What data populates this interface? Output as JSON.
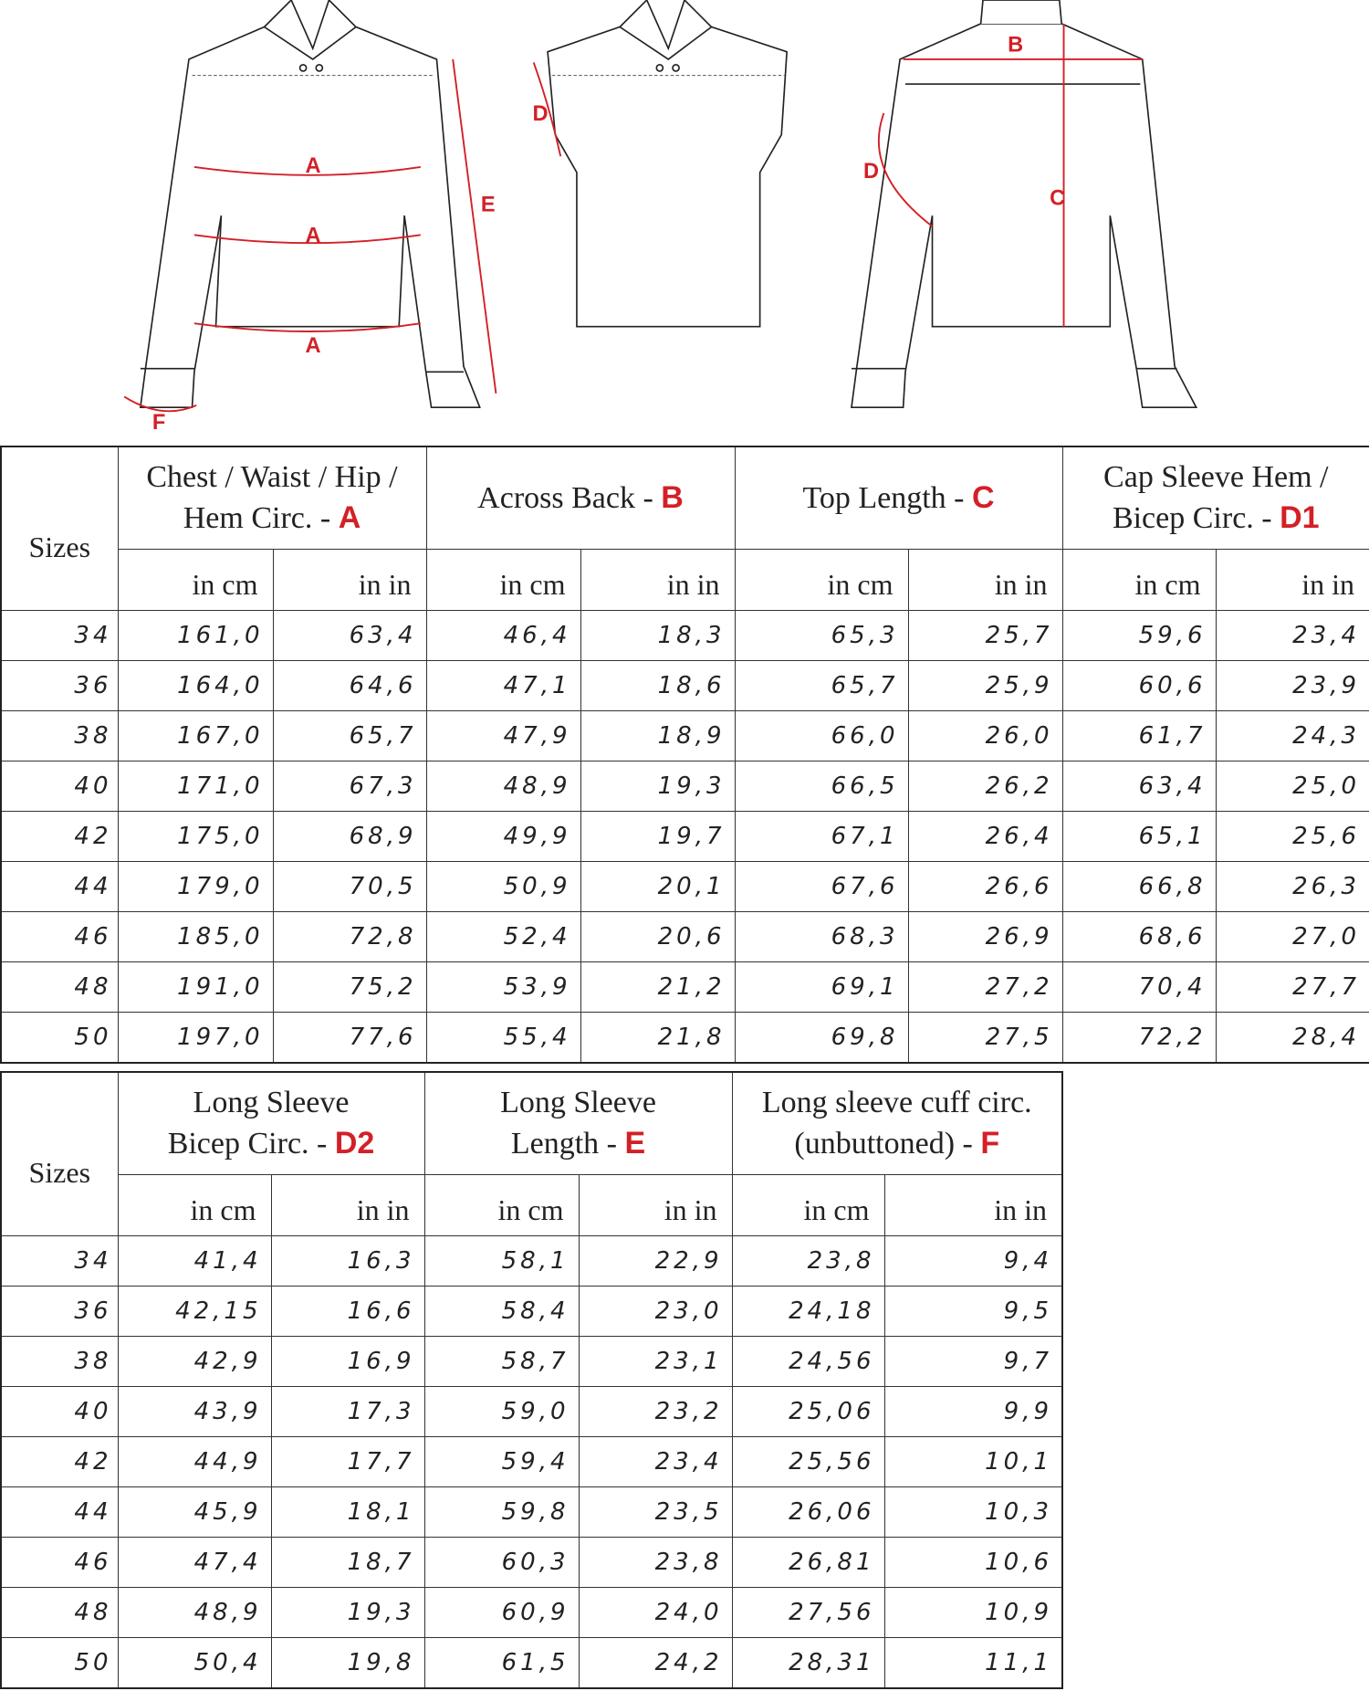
{
  "colors": {
    "accent": "#d32027",
    "line": "#222222"
  },
  "sketch": {
    "labels": {
      "A": "A",
      "B": "B",
      "C": "C",
      "D": "D",
      "E": "E",
      "F": "F"
    }
  },
  "table1": {
    "sizes_label": "Sizes",
    "unit_cm": "in cm",
    "unit_in": "in in",
    "groups": [
      {
        "lines": [
          "Chest / Waist / Hip /",
          "Hem Circ.  -"
        ],
        "letter": "A"
      },
      {
        "lines": [
          "Across Back -"
        ],
        "letter": "B"
      },
      {
        "lines": [
          "Top Length -"
        ],
        "letter": "C"
      },
      {
        "lines": [
          "Cap Sleeve Hem /",
          "Bicep Circ. -"
        ],
        "letter": "D1"
      }
    ],
    "rows": [
      [
        "34",
        "161,0",
        "63,4",
        "46,4",
        "18,3",
        "65,3",
        "25,7",
        "59,6",
        "23,4"
      ],
      [
        "36",
        "164,0",
        "64,6",
        "47,1",
        "18,6",
        "65,7",
        "25,9",
        "60,6",
        "23,9"
      ],
      [
        "38",
        "167,0",
        "65,7",
        "47,9",
        "18,9",
        "66,0",
        "26,0",
        "61,7",
        "24,3"
      ],
      [
        "40",
        "171,0",
        "67,3",
        "48,9",
        "19,3",
        "66,5",
        "26,2",
        "63,4",
        "25,0"
      ],
      [
        "42",
        "175,0",
        "68,9",
        "49,9",
        "19,7",
        "67,1",
        "26,4",
        "65,1",
        "25,6"
      ],
      [
        "44",
        "179,0",
        "70,5",
        "50,9",
        "20,1",
        "67,6",
        "26,6",
        "66,8",
        "26,3"
      ],
      [
        "46",
        "185,0",
        "72,8",
        "52,4",
        "20,6",
        "68,3",
        "26,9",
        "68,6",
        "27,0"
      ],
      [
        "48",
        "191,0",
        "75,2",
        "53,9",
        "21,2",
        "69,1",
        "27,2",
        "70,4",
        "27,7"
      ],
      [
        "50",
        "197,0",
        "77,6",
        "55,4",
        "21,8",
        "69,8",
        "27,5",
        "72,2",
        "28,4"
      ]
    ]
  },
  "table2": {
    "sizes_label": "Sizes",
    "unit_cm": "in cm",
    "unit_in": "in in",
    "groups": [
      {
        "lines": [
          "Long Sleeve",
          "Bicep Circ. -"
        ],
        "letter": "D2"
      },
      {
        "lines": [
          "Long Sleeve",
          "Length -"
        ],
        "letter": "E"
      },
      {
        "lines": [
          "Long sleeve cuff circ.",
          "(unbuttoned) -"
        ],
        "letter": "F"
      }
    ],
    "rows": [
      [
        "34",
        "41,4",
        "16,3",
        "58,1",
        "22,9",
        "23,8",
        "9,4"
      ],
      [
        "36",
        "42,15",
        "16,6",
        "58,4",
        "23,0",
        "24,18",
        "9,5"
      ],
      [
        "38",
        "42,9",
        "16,9",
        "58,7",
        "23,1",
        "24,56",
        "9,7"
      ],
      [
        "40",
        "43,9",
        "17,3",
        "59,0",
        "23,2",
        "25,06",
        "9,9"
      ],
      [
        "42",
        "44,9",
        "17,7",
        "59,4",
        "23,4",
        "25,56",
        "10,1"
      ],
      [
        "44",
        "45,9",
        "18,1",
        "59,8",
        "23,5",
        "26,06",
        "10,3"
      ],
      [
        "46",
        "47,4",
        "18,7",
        "60,3",
        "23,8",
        "26,81",
        "10,6"
      ],
      [
        "48",
        "48,9",
        "19,3",
        "60,9",
        "24,0",
        "27,56",
        "10,9"
      ],
      [
        "50",
        "50,4",
        "19,8",
        "61,5",
        "24,2",
        "28,31",
        "11,1"
      ]
    ]
  }
}
